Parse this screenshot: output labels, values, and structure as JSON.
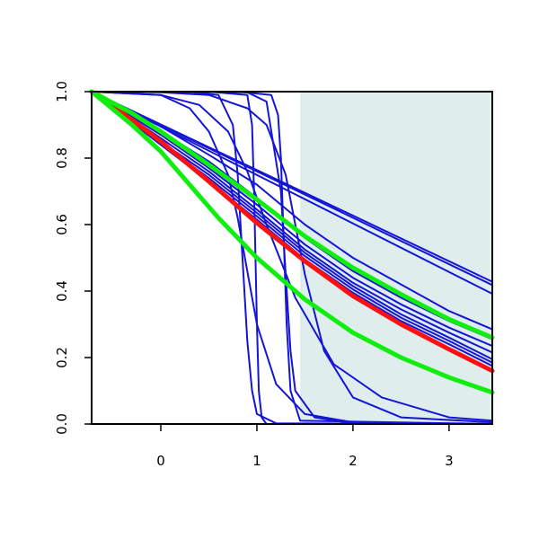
{
  "chart_data": {
    "type": "line",
    "title": "",
    "xlabel": "",
    "ylabel": "",
    "xlim": [
      -0.72,
      3.45
    ],
    "ylim": [
      0,
      1
    ],
    "x_ticks": [
      0,
      1,
      2,
      3
    ],
    "y_ticks": [
      0.0,
      0.2,
      0.4,
      0.6,
      0.8,
      1.0
    ],
    "y_tick_labels": [
      "0.0",
      "0.2",
      "0.4",
      "0.6",
      "0.8",
      "1.0"
    ],
    "grid": false,
    "shaded_region": {
      "x_start": 1.45,
      "x_end": 3.45,
      "color": "#e0eded"
    },
    "colors": {
      "blue": "#1515d5",
      "red": "#ff1010",
      "green": "#10ee10"
    },
    "series": [
      {
        "color": "blue",
        "x": [
          -0.72,
          3.45
        ],
        "y": [
          1.0,
          0.428
        ]
      },
      {
        "color": "blue",
        "x": [
          -0.72,
          3.45
        ],
        "y": [
          1.0,
          0.418
        ]
      },
      {
        "color": "blue",
        "x": [
          -0.72,
          3.45
        ],
        "y": [
          1.0,
          0.392
        ]
      },
      {
        "color": "blue",
        "x": [
          -0.72,
          0.0,
          0.5,
          1.0,
          1.5,
          2.0,
          2.5,
          3.0,
          3.45
        ],
        "y": [
          1.0,
          0.895,
          0.81,
          0.72,
          0.6,
          0.5,
          0.42,
          0.34,
          0.285
        ]
      },
      {
        "color": "blue",
        "x": [
          -0.72,
          0.0,
          0.5,
          1.0,
          1.5,
          2.0,
          2.5,
          3.0,
          3.45
        ],
        "y": [
          1.0,
          0.88,
          0.79,
          0.68,
          0.56,
          0.46,
          0.38,
          0.31,
          0.255
        ]
      },
      {
        "color": "blue",
        "x": [
          -0.72,
          0.0,
          0.5,
          1.0,
          1.5,
          2.0,
          2.5,
          3.0,
          3.45
        ],
        "y": [
          1.0,
          0.87,
          0.77,
          0.66,
          0.54,
          0.44,
          0.36,
          0.29,
          0.235
        ]
      },
      {
        "color": "blue",
        "x": [
          -0.72,
          0.0,
          0.5,
          1.0,
          1.5,
          2.0,
          2.5,
          3.0,
          3.45
        ],
        "y": [
          1.0,
          0.86,
          0.76,
          0.645,
          0.525,
          0.425,
          0.345,
          0.275,
          0.215
        ]
      },
      {
        "color": "blue",
        "x": [
          -0.72,
          0.0,
          0.5,
          1.0,
          1.5,
          2.0,
          2.5,
          3.0,
          3.45
        ],
        "y": [
          1.0,
          0.85,
          0.75,
          0.635,
          0.515,
          0.415,
          0.33,
          0.26,
          0.195
        ]
      },
      {
        "color": "blue",
        "x": [
          -0.72,
          0.0,
          0.5,
          1.0,
          1.5,
          2.0,
          2.5,
          3.0,
          3.45
        ],
        "y": [
          1.0,
          0.845,
          0.74,
          0.625,
          0.505,
          0.405,
          0.32,
          0.25,
          0.185
        ]
      },
      {
        "color": "blue",
        "x": [
          -0.72,
          0.0,
          0.5,
          1.0,
          1.5,
          2.0,
          2.5,
          3.0,
          3.45
        ],
        "y": [
          1.0,
          0.84,
          0.73,
          0.615,
          0.495,
          0.395,
          0.31,
          0.24,
          0.175
        ]
      },
      {
        "color": "blue",
        "x": [
          -0.72,
          0.0,
          0.4,
          0.7,
          0.9,
          1.1,
          1.4,
          1.8,
          2.3,
          3.0,
          3.45
        ],
        "y": [
          1.0,
          0.99,
          0.96,
          0.88,
          0.76,
          0.6,
          0.38,
          0.18,
          0.08,
          0.02,
          0.01
        ]
      },
      {
        "color": "blue",
        "x": [
          -0.72,
          0.0,
          0.5,
          0.9,
          1.1,
          1.3,
          1.5,
          1.7,
          2.0,
          2.5,
          3.45
        ],
        "y": [
          1.0,
          0.998,
          0.99,
          0.95,
          0.9,
          0.75,
          0.45,
          0.22,
          0.08,
          0.02,
          0.005
        ]
      },
      {
        "color": "blue",
        "x": [
          -0.72,
          0.0,
          0.3,
          0.5,
          0.7,
          0.8,
          0.9,
          1.0,
          1.2,
          1.5,
          2.0,
          3.45
        ],
        "y": [
          1.0,
          0.99,
          0.95,
          0.88,
          0.75,
          0.62,
          0.46,
          0.3,
          0.12,
          0.03,
          0.005,
          0.0
        ]
      },
      {
        "color": "blue",
        "x": [
          -0.72,
          0.3,
          0.6,
          0.75,
          0.8,
          0.85,
          0.9,
          0.95,
          1.0,
          1.2,
          3.45
        ],
        "y": [
          1.0,
          0.999,
          0.99,
          0.9,
          0.75,
          0.5,
          0.25,
          0.1,
          0.03,
          0.002,
          0.0
        ]
      },
      {
        "color": "blue",
        "x": [
          -0.72,
          0.5,
          0.9,
          0.95,
          0.97,
          1.0,
          1.02,
          1.05,
          1.1,
          3.45
        ],
        "y": [
          1.0,
          1.0,
          0.99,
          0.9,
          0.7,
          0.3,
          0.1,
          0.02,
          0.0,
          0.0
        ]
      },
      {
        "color": "blue",
        "x": [
          -0.72,
          0.8,
          1.15,
          1.22,
          1.25,
          1.28,
          1.31,
          1.35,
          1.45,
          3.45
        ],
        "y": [
          1.0,
          1.0,
          0.99,
          0.93,
          0.8,
          0.55,
          0.3,
          0.1,
          0.01,
          0.0
        ]
      },
      {
        "color": "blue",
        "x": [
          -0.72,
          0.9,
          1.1,
          1.25,
          1.3,
          1.35,
          1.4,
          1.6,
          2.0,
          3.45
        ],
        "y": [
          1.0,
          0.998,
          0.97,
          0.7,
          0.45,
          0.22,
          0.1,
          0.02,
          0.002,
          0.0
        ]
      },
      {
        "color": "red",
        "x": [
          -0.72,
          -0.3,
          0.0,
          0.5,
          1.0,
          1.5,
          2.0,
          2.5,
          3.0,
          3.45
        ],
        "y": [
          1.0,
          0.915,
          0.85,
          0.73,
          0.605,
          0.49,
          0.385,
          0.3,
          0.225,
          0.16
        ]
      },
      {
        "color": "green",
        "x": [
          -0.72,
          -0.3,
          0.0,
          0.5,
          1.0,
          1.5,
          2.0,
          2.5,
          3.0,
          3.45
        ],
        "y": [
          1.0,
          0.935,
          0.88,
          0.78,
          0.675,
          0.565,
          0.47,
          0.39,
          0.315,
          0.26
        ]
      },
      {
        "color": "green",
        "x": [
          -0.72,
          -0.3,
          0.0,
          0.3,
          0.6,
          1.0,
          1.5,
          2.0,
          2.5,
          3.0,
          3.45
        ],
        "y": [
          1.0,
          0.9,
          0.82,
          0.72,
          0.62,
          0.5,
          0.375,
          0.275,
          0.2,
          0.14,
          0.095
        ]
      }
    ]
  }
}
